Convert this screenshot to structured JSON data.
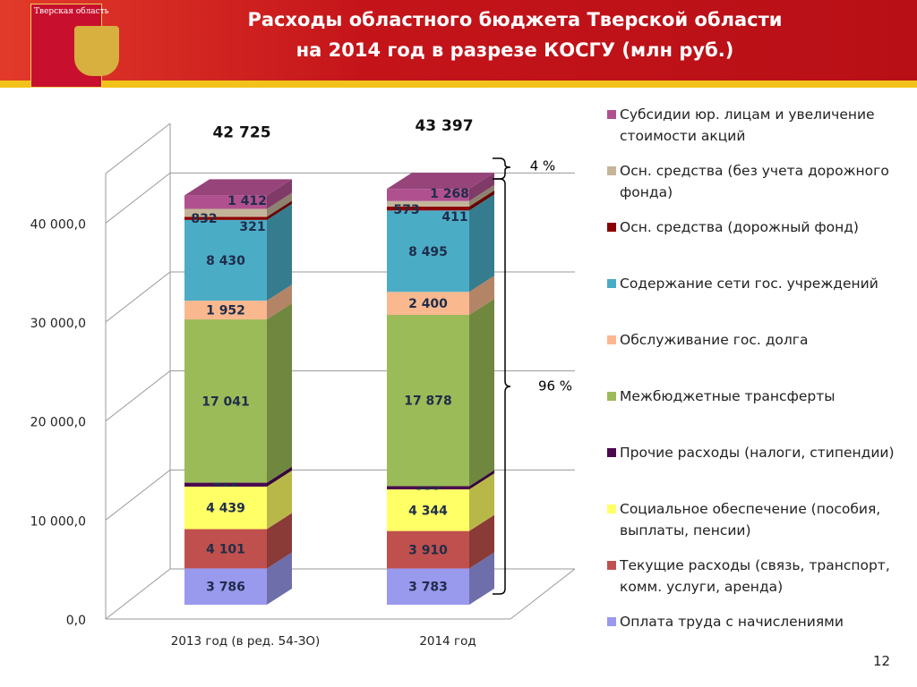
{
  "header": {
    "region": "Тверская область"
  },
  "slide_number": "12",
  "chart_data": {
    "type": "stacked-bar-3d",
    "title": "Расходы областного бюджета Тверской области",
    "subtitle": "на 2014 год в разрезе КОСГУ (млн руб.)",
    "categories": [
      "2013 год (в ред. 54-ЗО)",
      "2014 год"
    ],
    "total_labels": [
      "42 725",
      "43 397"
    ],
    "annotations": [
      "4 %",
      "96 %"
    ],
    "ylim": [
      0,
      45000
    ],
    "yticks": [
      {
        "value": 0,
        "label": "0,0"
      },
      {
        "value": 10000,
        "label": "10 000,0"
      },
      {
        "value": 20000,
        "label": "20 000,0"
      },
      {
        "value": 30000,
        "label": "30 000,0"
      },
      {
        "value": 40000,
        "label": "40 000,0"
      }
    ],
    "grid": true,
    "legend": "right",
    "series": [
      {
        "name": "Оплата труда с начислениями",
        "color": "#9999ee",
        "values": [
          3786,
          3783
        ],
        "value_labels": [
          "3 786",
          "3 783"
        ]
      },
      {
        "name": "Текущие расходы (связь, транспорт, комм. услуги, аренда)",
        "color": "#c0504d",
        "values": [
          4101,
          3910
        ],
        "value_labels": [
          "4 101",
          "3 910"
        ]
      },
      {
        "name": "Социальное обеспечение (пособия, выплаты, пенсии)",
        "color": "#ffff66",
        "values": [
          4439,
          4344
        ],
        "value_labels": [
          "4 439",
          "4 344"
        ]
      },
      {
        "name": "Прочие расходы (налоги, стипендии)",
        "color": "#4b0a4f",
        "values": [
          411,
          335
        ]
      },
      {
        "name": "Межбюджетные трансферты",
        "color": "#9bbb59",
        "values": [
          17041,
          17878
        ],
        "value_labels": [
          "17 041",
          "17 878"
        ]
      },
      {
        "name": "Обслуживание гос. долга",
        "color": "#fab88f",
        "values": [
          1952,
          2400
        ],
        "value_labels": [
          "1 952",
          "2 400"
        ]
      },
      {
        "name": "Содержание сети гос. учреждений",
        "color": "#4bacc6",
        "values": [
          8430,
          8495
        ],
        "value_labels": [
          "8 430",
          "8 495"
        ]
      },
      {
        "name": "Осн. средства (дорожный фонд)",
        "color": "#8b0000",
        "values": [
          321,
          411
        ]
      },
      {
        "name": "Осн. средства (без учета дорожного фонда)",
        "color": "#c4b59a",
        "values": [
          832,
          573
        ]
      },
      {
        "name": "Субсидии юр. лицам и увеличение стоимости акций",
        "color": "#b0508f",
        "values": [
          1412,
          1268
        ],
        "value_labels": [
          "1 412",
          "1 268"
        ]
      }
    ]
  }
}
